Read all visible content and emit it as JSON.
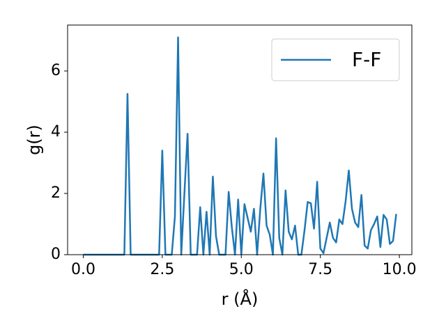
{
  "chart_data": {
    "type": "line",
    "x_label": "r (Å)",
    "y_label": "g(r)",
    "x": [
      0.0,
      0.1,
      0.2,
      0.3,
      0.4,
      0.5,
      0.6,
      0.7,
      0.8,
      0.9,
      1.0,
      1.1,
      1.2,
      1.3,
      1.4,
      1.5,
      1.6,
      1.7,
      1.8,
      1.9,
      2.0,
      2.1,
      2.2,
      2.3,
      2.4,
      2.5,
      2.6,
      2.7,
      2.8,
      2.9,
      3.0,
      3.1,
      3.2,
      3.3,
      3.4,
      3.5,
      3.6,
      3.7,
      3.8,
      3.9,
      4.0,
      4.1,
      4.2,
      4.3,
      4.4,
      4.5,
      4.6,
      4.7,
      4.8,
      4.9,
      5.0,
      5.1,
      5.2,
      5.3,
      5.4,
      5.5,
      5.6,
      5.7,
      5.8,
      5.9,
      6.0,
      6.1,
      6.2,
      6.3,
      6.4,
      6.5,
      6.6,
      6.7,
      6.8,
      6.9,
      7.0,
      7.1,
      7.2,
      7.3,
      7.4,
      7.5,
      7.6,
      7.7,
      7.8,
      7.9,
      8.0,
      8.1,
      8.2,
      8.3,
      8.4,
      8.5,
      8.6,
      8.7,
      8.8,
      8.9,
      9.0,
      9.1,
      9.2,
      9.3,
      9.4,
      9.5,
      9.6,
      9.7,
      9.8,
      9.9
    ],
    "series": [
      {
        "name": "F-F",
        "color": "#1f77b4",
        "values": [
          0,
          0,
          0,
          0,
          0,
          0,
          0,
          0,
          0,
          0,
          0,
          0,
          0,
          0,
          5.25,
          0,
          0,
          0,
          0,
          0,
          0,
          0,
          0,
          0,
          0,
          3.4,
          0,
          0,
          0,
          1.25,
          7.1,
          0,
          2.0,
          3.95,
          0,
          0,
          0,
          1.55,
          0,
          1.4,
          0,
          2.55,
          0.6,
          0,
          0,
          0,
          2.05,
          0.9,
          0,
          1.8,
          0,
          1.65,
          1.2,
          0.75,
          1.5,
          0,
          1.5,
          2.65,
          0.95,
          0.65,
          0,
          3.8,
          0.55,
          0,
          2.1,
          0.75,
          0.5,
          0.95,
          0,
          0,
          0.8,
          1.72,
          1.68,
          0.85,
          2.38,
          0.2,
          0.05,
          0.55,
          1.05,
          0.55,
          0.4,
          1.15,
          1.0,
          1.75,
          2.75,
          1.5,
          1.05,
          0.9,
          1.95,
          0.3,
          0.2,
          0.8,
          1.0,
          1.25,
          0.25,
          1.3,
          1.15,
          0.35,
          0.45,
          1.33
        ]
      }
    ],
    "xlim": [
      -0.495,
      10.395
    ],
    "ylim": [
      0,
      7.5
    ],
    "xticks": [
      {
        "value": 0,
        "label": "0.0"
      },
      2.5,
      {
        "value": 5,
        "label": "5.0"
      },
      7.5,
      {
        "value": 10,
        "label": "10.0"
      }
    ],
    "yticks": [
      0,
      2,
      4,
      6
    ],
    "legend": "upper right"
  }
}
